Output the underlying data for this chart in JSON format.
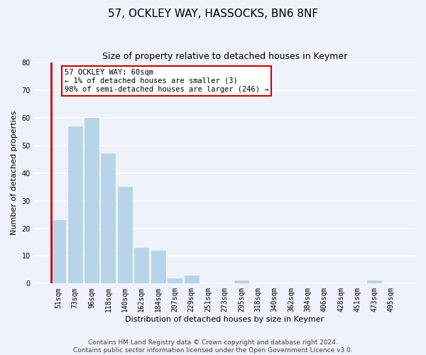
{
  "title": "57, OCKLEY WAY, HASSOCKS, BN6 8NF",
  "subtitle": "Size of property relative to detached houses in Keymer",
  "xlabel": "Distribution of detached houses by size in Keymer",
  "ylabel": "Number of detached properties",
  "bin_labels": [
    "51sqm",
    "73sqm",
    "96sqm",
    "118sqm",
    "140sqm",
    "162sqm",
    "184sqm",
    "207sqm",
    "229sqm",
    "251sqm",
    "273sqm",
    "295sqm",
    "318sqm",
    "340sqm",
    "362sqm",
    "384sqm",
    "406sqm",
    "428sqm",
    "451sqm",
    "473sqm",
    "495sqm"
  ],
  "bar_heights": [
    23,
    57,
    60,
    47,
    35,
    13,
    12,
    2,
    3,
    0,
    0,
    1,
    0,
    0,
    0,
    0,
    0,
    0,
    0,
    1,
    0
  ],
  "bar_color": "#b8d4e8",
  "red_color": "#cc0000",
  "annotation_line1": "57 OCKLEY WAY: 60sqm",
  "annotation_line2": "← 1% of detached houses are smaller (3)",
  "annotation_line3": "98% of semi-detached houses are larger (246) →",
  "annotation_box_color": "white",
  "annotation_box_edge_color": "#cc0000",
  "ylim": [
    0,
    80
  ],
  "yticks": [
    0,
    10,
    20,
    30,
    40,
    50,
    60,
    70,
    80
  ],
  "footer_text": "Contains HM Land Registry data © Crown copyright and database right 2024.\nContains public sector information licensed under the Open Government Licence v3.0.",
  "bg_color": "#eef2fa",
  "grid_color": "white",
  "title_fontsize": 11,
  "subtitle_fontsize": 9,
  "label_fontsize": 8,
  "tick_fontsize": 7,
  "annotation_fontsize": 7.5,
  "footer_fontsize": 6.5
}
